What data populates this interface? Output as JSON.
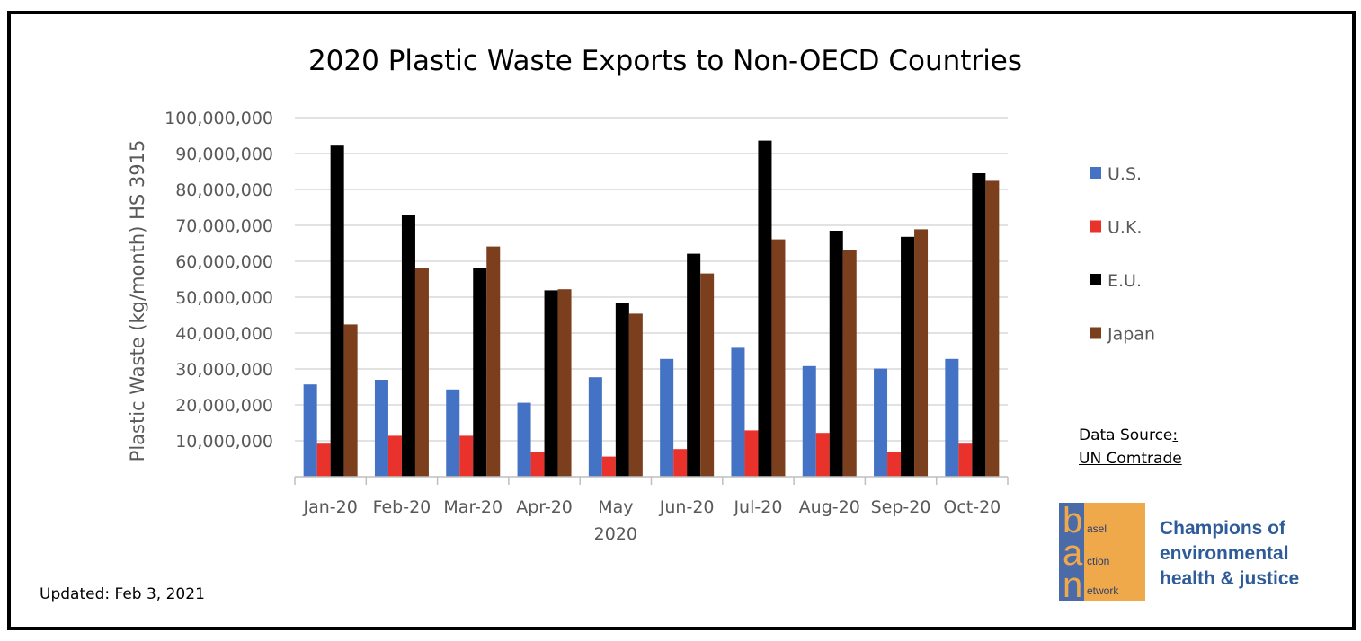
{
  "chart_data": {
    "type": "bar",
    "title": "2020 Plastic Waste Exports to Non-OECD Countries",
    "ylabel": "Plastic Waste (kg/month) HS 3915",
    "xlabel": "",
    "ylim": [
      0,
      100000000
    ],
    "yticks": [
      "",
      "10,000,000",
      "20,000,000",
      "30,000,000",
      "40,000,000",
      "50,000,000",
      "60,000,000",
      "70,000,000",
      "80,000,000",
      "90,000,000",
      "100,000,000"
    ],
    "categories": [
      "Jan-20",
      "Feb-20",
      "Mar-20",
      "Apr-20",
      "May 2020",
      "Jun-20",
      "Jul-20",
      "Aug-20",
      "Sep-20",
      "Oct-20"
    ],
    "legend_position": "right",
    "grid": true,
    "series": [
      {
        "name": "U.S.",
        "color": "#4472c4",
        "values": [
          25700000,
          27000000,
          24300000,
          20600000,
          27700000,
          32800000,
          35900000,
          30800000,
          30100000,
          32800000
        ]
      },
      {
        "name": "U.K.",
        "color": "#e8322b",
        "values": [
          9200000,
          11400000,
          11400000,
          7000000,
          5600000,
          7700000,
          12900000,
          12200000,
          7000000,
          9200000
        ]
      },
      {
        "name": "E.U.",
        "color": "#000000",
        "values": [
          92200000,
          72900000,
          58000000,
          51900000,
          48500000,
          62100000,
          93600000,
          68500000,
          66800000,
          84500000
        ]
      },
      {
        "name": "Japan",
        "color": "#7b3f1d",
        "values": [
          42400000,
          58000000,
          64100000,
          52200000,
          45400000,
          56600000,
          66100000,
          63100000,
          68900000,
          82400000
        ]
      }
    ]
  },
  "source": {
    "label": "Data Source",
    "colon": ":",
    "name": "UN Comtrade"
  },
  "updated": "Updated: Feb 3, 2021",
  "logo": {
    "letters": [
      "b",
      "a",
      "n"
    ],
    "words": [
      "asel",
      "ction",
      "etwork"
    ],
    "tagline": [
      "Champions of",
      "environmental",
      "health & justice"
    ],
    "colors": {
      "stripe": "#4a6aa8",
      "box": "#f0a94a",
      "tagline": "#2e5c9a"
    }
  }
}
